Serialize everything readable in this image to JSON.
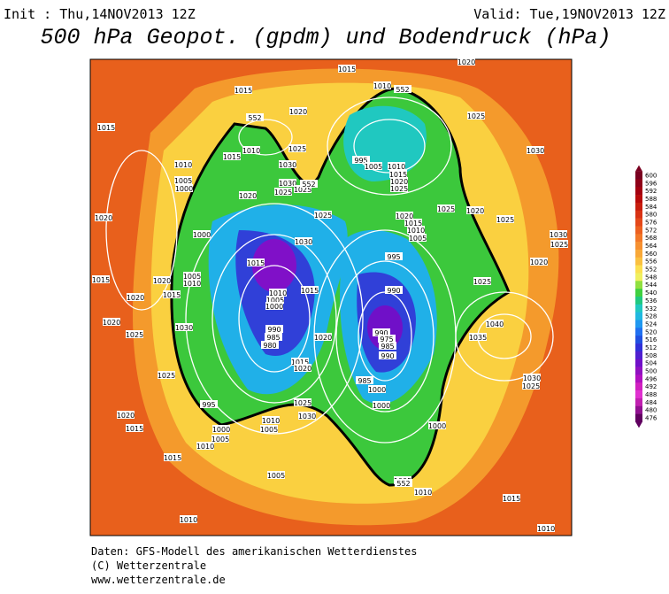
{
  "header": {
    "init": "Init : Thu,14NOV2013 12Z",
    "valid": "Valid: Tue,19NOV2013 12Z",
    "title": "500 hPa Geopot. (gpdm) und Bodendruck (hPa)"
  },
  "colorbar": {
    "ticks": [
      600,
      596,
      592,
      588,
      584,
      580,
      576,
      572,
      568,
      564,
      560,
      556,
      552,
      548,
      544,
      540,
      536,
      532,
      528,
      524,
      520,
      516,
      512,
      508,
      504,
      500,
      496,
      492,
      488,
      484,
      480,
      476
    ],
    "colors": [
      "#7a0020",
      "#8e0018",
      "#a40010",
      "#b80a0a",
      "#c81e0e",
      "#d83214",
      "#e4481a",
      "#ec6020",
      "#f27828",
      "#f69030",
      "#f8a838",
      "#fac040",
      "#fce050",
      "#f0f060",
      "#90e040",
      "#40d040",
      "#20c880",
      "#20c8c0",
      "#20b8e0",
      "#2098f0",
      "#2070f0",
      "#2050e0",
      "#3030d8",
      "#5020d0",
      "#7010c8",
      "#9010c0",
      "#b010c0",
      "#d020c0",
      "#e030d0",
      "#c020b0",
      "#901090",
      "#600060"
    ]
  },
  "isobars": [
    "1015",
    "1020",
    "1015",
    "1015",
    "1010",
    "1020",
    "1025",
    "1010",
    "1015",
    "1025",
    "1030",
    "1010",
    "1005",
    "1000",
    "1030",
    "1025",
    "1025",
    "1020",
    "1025",
    "995",
    "1005",
    "1010",
    "1015",
    "1020",
    "1025",
    "1030",
    "1020",
    "1020",
    "1015",
    "1010",
    "1005",
    "1025",
    "1020",
    "1025",
    "1030",
    "1025",
    "1000",
    "1030",
    "995",
    "1020",
    "1015",
    "1015",
    "1020",
    "1005",
    "1010",
    "1020",
    "1015",
    "990",
    "1025",
    "1015",
    "1010",
    "1005",
    "1000",
    "1020",
    "1030",
    "990",
    "985",
    "980",
    "990",
    "975",
    "985",
    "990",
    "1020",
    "1025",
    "1040",
    "1035",
    "1030",
    "1025",
    "1015",
    "1020",
    "1025",
    "985",
    "1000",
    "1000",
    "1025",
    "1030",
    "995",
    "1020",
    "1015",
    "1010",
    "1005",
    "1000",
    "1005",
    "1010",
    "1000",
    "1005",
    "1015",
    "1005",
    "1010",
    "1015",
    "1010",
    "1010",
    "552",
    "552",
    "552",
    "552"
  ],
  "footer": [
    "Daten: GFS-Modell des amerikanischen Wetterdienstes",
    "(C) Wetterzentrale",
    "www.wetterzentrale.de"
  ]
}
